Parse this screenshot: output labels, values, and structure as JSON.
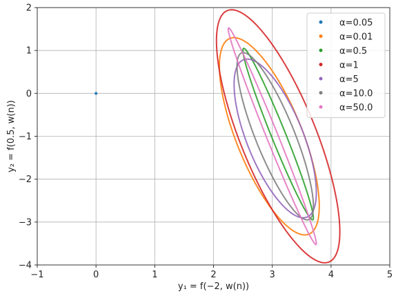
{
  "chart_data": {
    "type": "scatter",
    "xlabel": "y₁ = f(−2, w(n))",
    "ylabel": "y₂ = f(0.5, w(n))",
    "xlim": [
      -1,
      5
    ],
    "ylim": [
      -4,
      2
    ],
    "x_ticks": [
      "−1",
      "0",
      "1",
      "2",
      "3",
      "4",
      "5"
    ],
    "y_ticks": [
      "−4",
      "−3",
      "−2",
      "−1",
      "0",
      "1",
      "2"
    ],
    "grid": true,
    "legend_position": "top-right",
    "series": [
      {
        "name": "α=0.05",
        "color": "#1f77b4",
        "shape": "point",
        "x": 0.0,
        "y": 0.0
      },
      {
        "name": "α=0.01",
        "color": "#ff7f0e",
        "shape": "ellipse",
        "center": [
          2.95,
          -1.0
        ],
        "x_extent": [
          2.1,
          3.8
        ],
        "y_extent": [
          -3.3,
          1.3
        ]
      },
      {
        "name": "α=0.5",
        "color": "#2ca02c",
        "shape": "ellipse",
        "center": [
          3.1,
          -0.95
        ],
        "x_extent": [
          2.4,
          3.6
        ],
        "y_extent": [
          -2.9,
          1.1
        ]
      },
      {
        "name": "α=1",
        "color": "#d62728",
        "shape": "ellipse",
        "center": [
          3.1,
          -1.0
        ],
        "x_extent": [
          1.95,
          4.05
        ],
        "y_extent": [
          -3.95,
          1.95
        ]
      },
      {
        "name": "α=5",
        "color": "#9467bd",
        "shape": "ellipse",
        "center": [
          3.05,
          -1.05
        ],
        "x_extent": [
          2.35,
          3.75
        ],
        "y_extent": [
          -2.9,
          0.8
        ]
      },
      {
        "name": "α=10.0",
        "color": "#7f7f7f",
        "shape": "ellipse",
        "center": [
          3.05,
          -1.0
        ],
        "x_extent": [
          2.4,
          3.7
        ],
        "y_extent": [
          -2.95,
          0.95
        ]
      },
      {
        "name": "α=50.0",
        "color": "#e377c2",
        "shape": "ellipse",
        "center": [
          3.0,
          -1.0
        ],
        "x_extent": [
          2.3,
          3.8
        ],
        "y_extent": [
          -3.5,
          1.55
        ]
      }
    ]
  }
}
